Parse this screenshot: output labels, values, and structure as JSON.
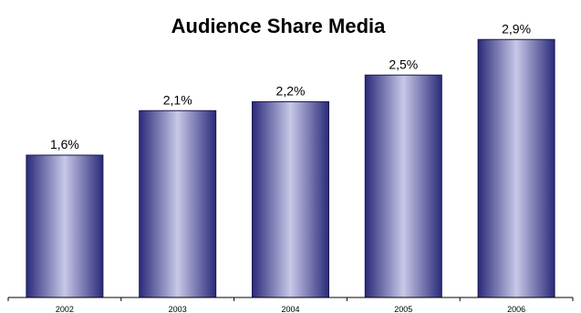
{
  "chart_data": {
    "type": "bar",
    "title": "Audience Share Media",
    "categories": [
      "2002",
      "2003",
      "2004",
      "2005",
      "2006"
    ],
    "values": [
      1.6,
      2.1,
      2.2,
      2.5,
      2.9
    ],
    "data_labels": [
      "1,6%",
      "2,1%",
      "2,2%",
      "2,5%",
      "2,9%"
    ],
    "ylim": [
      0,
      3.2
    ],
    "grid": false,
    "legend": "none",
    "xlabel": "",
    "ylabel": "",
    "colors": {
      "bar_edge": "#2a2a7a",
      "bar_center": "#c8c8e8",
      "bar_outline": "#1a1a50",
      "axis": "#000000"
    }
  }
}
